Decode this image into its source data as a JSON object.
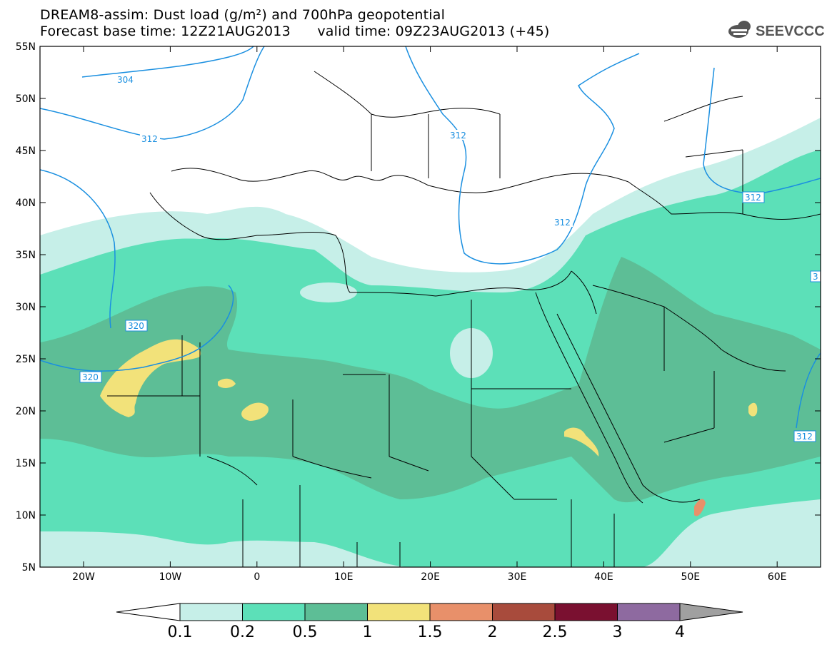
{
  "header": {
    "line1": "DREAM8-assim: Dust load (g/m²) and 700hPa geopotential",
    "line2": "Forecast base time: 12Z21AUG2013      valid time: 09Z23AUG2013 (+45)",
    "logo_text": "SEEVCCC"
  },
  "map": {
    "lat_labels": [
      "55N",
      "50N",
      "45N",
      "40N",
      "35N",
      "30N",
      "25N",
      "20N",
      "15N",
      "10N",
      "5N"
    ],
    "lon_labels": [
      "20W",
      "10W",
      "0",
      "10E",
      "20E",
      "30E",
      "40E",
      "50E",
      "60E"
    ],
    "contour_labels": [
      {
        "text": "304",
        "id": "c304"
      },
      {
        "text": "312",
        "id": "c312a"
      },
      {
        "text": "312",
        "id": "c312b"
      },
      {
        "text": "312",
        "id": "c312c"
      },
      {
        "text": "312",
        "id": "c312d"
      },
      {
        "text": "312",
        "id": "c312e"
      },
      {
        "text": "320",
        "id": "c320a"
      },
      {
        "text": "320",
        "id": "c320b"
      },
      {
        "text": "3",
        "id": "c3"
      }
    ],
    "colors": {
      "level_0_1": "#c6efe8",
      "level_0_2": "#5ce0b8",
      "level_0_5": "#5dbe96",
      "level_1": "#f2e27a",
      "contour": "#1a8fe0",
      "border": "#000000"
    }
  },
  "colorbar": {
    "labels": [
      "0.1",
      "0.2",
      "0.5",
      "1",
      "1.5",
      "2",
      "2.5",
      "3",
      "4"
    ],
    "colors": [
      "#c6efe8",
      "#5ce0b8",
      "#5dbe96",
      "#f2e27a",
      "#e8906a",
      "#a84b3c",
      "#7a1030",
      "#8e6aa0"
    ]
  }
}
